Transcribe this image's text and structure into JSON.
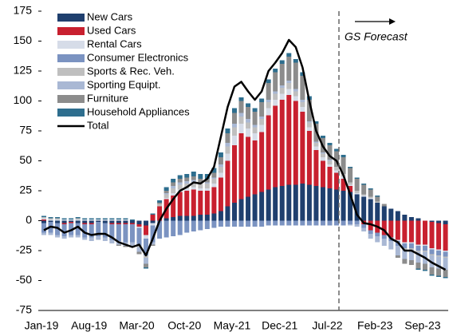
{
  "chart_data": {
    "type": "stacked_bar",
    "categories": [
      "Jan-19",
      null,
      null,
      null,
      null,
      null,
      null,
      "Aug-19",
      null,
      null,
      null,
      null,
      null,
      null,
      "Mar-20",
      null,
      null,
      null,
      null,
      null,
      null,
      "Oct-20",
      null,
      null,
      null,
      null,
      null,
      null,
      "May-21",
      null,
      null,
      null,
      null,
      null,
      null,
      "Dec-21",
      null,
      null,
      null,
      null,
      null,
      null,
      "Jul-22",
      null,
      null,
      null,
      null,
      null,
      null,
      "Feb-23",
      null,
      null,
      null,
      null,
      null,
      null,
      "Sep-23",
      null,
      null,
      null
    ],
    "annotation": "GS Forecast",
    "ylim": [
      -75,
      175
    ],
    "yticks": [
      -75,
      -50,
      -25,
      0,
      25,
      50,
      75,
      100,
      125,
      150,
      175
    ],
    "series": [
      {
        "name": "New Cars",
        "color": "#1f3f6e",
        "values": [
          -2,
          -1,
          -2,
          -2,
          -1,
          -2,
          -2,
          -2,
          -1,
          -2,
          -2,
          -2,
          -2,
          -2,
          -3,
          -4,
          -2,
          0,
          2,
          3,
          4,
          4,
          4,
          5,
          5,
          6,
          8,
          12,
          15,
          18,
          20,
          22,
          24,
          26,
          28,
          29,
          30,
          30,
          31,
          30,
          29,
          28,
          27,
          26,
          25,
          24,
          22,
          20,
          18,
          15,
          12,
          10,
          8,
          5,
          3,
          2,
          0,
          -1,
          -2,
          -3
        ]
      },
      {
        "name": "Used Cars",
        "color": "#c8202f",
        "values": [
          1,
          0,
          0,
          -1,
          -1,
          0,
          -1,
          -1,
          0,
          0,
          -1,
          -1,
          -1,
          -1,
          -2,
          -8,
          5,
          12,
          16,
          18,
          20,
          21,
          22,
          20,
          20,
          22,
          28,
          38,
          48,
          55,
          50,
          45,
          50,
          62,
          68,
          72,
          75,
          70,
          60,
          45,
          30,
          22,
          18,
          14,
          10,
          5,
          0,
          -3,
          -8,
          -10,
          -12,
          -14,
          -16,
          -18,
          -18,
          -20,
          -20,
          -22,
          -22,
          -22
        ]
      },
      {
        "name": "Rental Cars",
        "color": "#d6dce8",
        "values": [
          1,
          1,
          1,
          1,
          1,
          1,
          1,
          1,
          1,
          1,
          1,
          1,
          1,
          0,
          -1,
          -3,
          -2,
          0,
          1,
          2,
          2,
          2,
          2,
          2,
          2,
          3,
          4,
          6,
          8,
          8,
          7,
          6,
          6,
          6,
          5,
          5,
          5,
          4,
          4,
          3,
          3,
          3,
          2,
          2,
          2,
          1,
          1,
          1,
          1,
          0,
          0,
          0,
          -1,
          -1,
          -1,
          -1,
          -1,
          -1,
          -1,
          -1
        ]
      },
      {
        "name": "Consumer Electronics",
        "color": "#7b93c1",
        "values": [
          -8,
          -9,
          -10,
          -10,
          -10,
          -10,
          -11,
          -11,
          -12,
          -12,
          -13,
          -14,
          -15,
          -15,
          -15,
          -14,
          -14,
          -15,
          -14,
          -13,
          -12,
          -10,
          -9,
          -8,
          -7,
          -6,
          -5,
          -5,
          -5,
          -5,
          -5,
          -5,
          -5,
          -4,
          -4,
          -4,
          -4,
          -4,
          -4,
          -4,
          -4,
          -4,
          -4,
          -4,
          -4,
          -3,
          -3,
          -3,
          -3,
          -3,
          -3,
          -3,
          -4,
          -4,
          -4,
          -4,
          -4,
          -4,
          -4,
          -4
        ]
      },
      {
        "name": "Sports & Rec. Veh.",
        "color": "#bfbfbf",
        "values": [
          1,
          1,
          1,
          0,
          0,
          1,
          0,
          0,
          0,
          0,
          0,
          0,
          0,
          0,
          -1,
          -2,
          0,
          2,
          3,
          4,
          4,
          4,
          4,
          4,
          4,
          4,
          5,
          6,
          7,
          6,
          5,
          5,
          5,
          5,
          5,
          5,
          5,
          4,
          4,
          4,
          3,
          3,
          3,
          3,
          2,
          2,
          2,
          1,
          1,
          1,
          0,
          0,
          0,
          -1,
          -1,
          -1,
          -1,
          -1,
          -1,
          -1
        ]
      },
      {
        "name": "Sporting Equipt.",
        "color": "#a9b8d4",
        "values": [
          -2,
          -2,
          -2,
          -2,
          -2,
          -2,
          -2,
          -3,
          -3,
          -3,
          -3,
          -3,
          -3,
          -3,
          -4,
          -5,
          -2,
          0,
          1,
          2,
          2,
          2,
          2,
          1,
          1,
          1,
          2,
          3,
          3,
          3,
          3,
          2,
          2,
          2,
          2,
          2,
          2,
          2,
          2,
          1,
          1,
          1,
          1,
          0,
          0,
          -1,
          -2,
          -3,
          -4,
          -5,
          -6,
          -7,
          -8,
          -8,
          -9,
          -9,
          -10,
          -10,
          -10,
          -10
        ]
      },
      {
        "name": "Furniture",
        "color": "#8c8c8c",
        "values": [
          0,
          0,
          0,
          0,
          0,
          0,
          0,
          0,
          0,
          0,
          0,
          -1,
          -1,
          -1,
          -2,
          -3,
          -1,
          1,
          2,
          3,
          3,
          3,
          3,
          3,
          3,
          4,
          6,
          8,
          9,
          10,
          10,
          11,
          12,
          14,
          16,
          18,
          20,
          22,
          20,
          18,
          15,
          12,
          12,
          13,
          14,
          12,
          10,
          8,
          6,
          4,
          2,
          0,
          -2,
          -4,
          -4,
          -5,
          -5,
          -6,
          -6,
          -6
        ]
      },
      {
        "name": "Household Appliances",
        "color": "#2e6e8e",
        "values": [
          1,
          1,
          1,
          1,
          1,
          1,
          1,
          1,
          1,
          1,
          1,
          1,
          1,
          1,
          0,
          -1,
          1,
          2,
          3,
          3,
          3,
          3,
          4,
          4,
          4,
          4,
          4,
          4,
          4,
          3,
          3,
          3,
          3,
          3,
          3,
          3,
          3,
          3,
          3,
          3,
          2,
          2,
          2,
          2,
          2,
          1,
          1,
          1,
          1,
          1,
          0,
          0,
          0,
          0,
          0,
          -1,
          -1,
          -1,
          -1,
          -1
        ]
      }
    ],
    "total": {
      "name": "Total",
      "color": "#000000",
      "values": [
        -8,
        -5,
        -6,
        -10,
        -8,
        -5,
        -10,
        -12,
        -11,
        -11,
        -14,
        -18,
        -20,
        -22,
        -20,
        -29,
        -15,
        0,
        10,
        18,
        25,
        28,
        32,
        31,
        35,
        45,
        70,
        95,
        112,
        116,
        108,
        101,
        108,
        125,
        132,
        140,
        151,
        145,
        128,
        100,
        75,
        62,
        54,
        50,
        38,
        22,
        5,
        -2,
        -3,
        -5,
        -8,
        -15,
        -18,
        -25,
        -25,
        -28,
        -31,
        -35,
        -38,
        -41
      ]
    }
  }
}
